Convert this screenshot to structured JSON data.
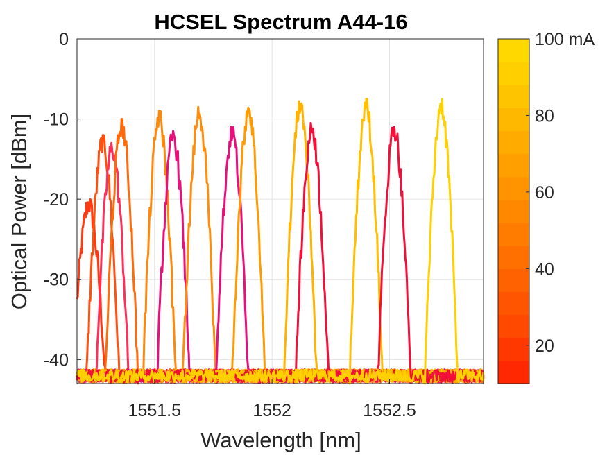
{
  "chart_data": {
    "type": "line",
    "title": "HCSEL Spectrum A44-16",
    "xlabel": "Wavelength [nm]",
    "ylabel": "Optical Power [dBm]",
    "xlim": [
      1551.17,
      1552.9
    ],
    "ylim": [
      -43,
      0
    ],
    "xticks": [
      "1551.5",
      "1552",
      "1552.5"
    ],
    "xtick_values": [
      1551.5,
      1552.0,
      1552.5
    ],
    "yticks": [
      "0",
      "-10",
      "-20",
      "-30",
      "-40"
    ],
    "ytick_values": [
      0,
      -10,
      -20,
      -30,
      -40
    ],
    "grid": true,
    "noise_floor_dBm": -42.5,
    "peak_half_width_nm": 0.07,
    "series": [
      {
        "peak_nm": 1551.22,
        "peak_dBm": -20.5,
        "current_mA": 20,
        "color": "#ff3a12"
      },
      {
        "peak_nm": 1551.28,
        "peak_dBm": -12.5,
        "current_mA": 30,
        "color": "#ff5010"
      },
      {
        "peak_nm": 1551.32,
        "peak_dBm": -13.5,
        "current_mA": 25,
        "color": "#ff2f5a"
      },
      {
        "peak_nm": 1551.36,
        "peak_dBm": -10.5,
        "current_mA": 55,
        "color": "#ff6a0a"
      },
      {
        "peak_nm": 1551.52,
        "peak_dBm": -9.5,
        "current_mA": 65,
        "color": "#ff880a"
      },
      {
        "peak_nm": 1551.58,
        "peak_dBm": -12.0,
        "current_mA": 20,
        "color": "#e8107a"
      },
      {
        "peak_nm": 1551.69,
        "peak_dBm": -9.0,
        "current_mA": 70,
        "color": "#ff8c0a"
      },
      {
        "peak_nm": 1551.83,
        "peak_dBm": -11.5,
        "current_mA": 20,
        "color": "#e8107a"
      },
      {
        "peak_nm": 1551.9,
        "peak_dBm": -8.5,
        "current_mA": 75,
        "color": "#ff9a00"
      },
      {
        "peak_nm": 1552.12,
        "peak_dBm": -8.0,
        "current_mA": 90,
        "color": "#ffb300"
      },
      {
        "peak_nm": 1552.17,
        "peak_dBm": -11.0,
        "current_mA": 15,
        "color": "#f0103a"
      },
      {
        "peak_nm": 1552.4,
        "peak_dBm": -8.0,
        "current_mA": 95,
        "color": "#ffbf00"
      },
      {
        "peak_nm": 1552.52,
        "peak_dBm": -11.0,
        "current_mA": 15,
        "color": "#f0103a"
      },
      {
        "peak_nm": 1552.72,
        "peak_dBm": -8.0,
        "current_mA": 100,
        "color": "#ffd000"
      }
    ],
    "colorbar": {
      "min": 10,
      "max": 100,
      "tick_labels": [
        "20",
        "40",
        "60",
        "80",
        "100 mA"
      ],
      "tick_values": [
        20,
        40,
        60,
        80,
        100
      ],
      "colors": [
        "#ff2800",
        "#ff3800",
        "#ff4800",
        "#ff5500",
        "#ff6200",
        "#ff7000",
        "#ff7c00",
        "#ff8800",
        "#ff9400",
        "#ff9f00",
        "#ffab00",
        "#ffb800",
        "#ffc400",
        "#ffcf00",
        "#ffd800"
      ]
    }
  }
}
